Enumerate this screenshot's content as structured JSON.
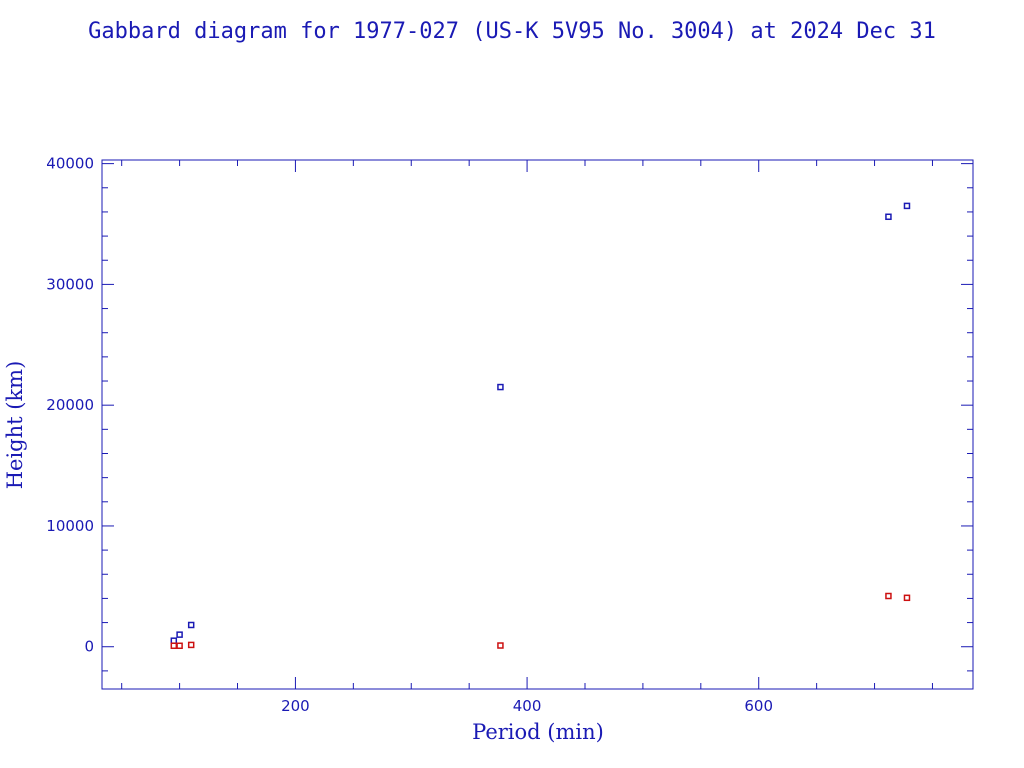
{
  "chart_data": {
    "type": "scatter",
    "title": "Gabbard diagram for 1977-027 (US-K 5V95 No. 3004) at 2024 Dec 31",
    "xlabel": "Period (min)",
    "ylabel": "Height (km)",
    "xlim": [
      33,
      785
    ],
    "ylim": [
      -3500,
      40300
    ],
    "xticks": [
      200,
      400,
      600
    ],
    "yticks": [
      0,
      10000,
      20000,
      30000,
      40000
    ],
    "xtick_labels": [
      "200",
      "400",
      "600"
    ],
    "ytick_labels": [
      "0",
      "10000",
      "20000",
      "30000",
      "40000"
    ],
    "grid": false,
    "colors": {
      "apogee": "#1a1ab4",
      "perigee": "#cc1010",
      "axis": "#1a1ab4"
    },
    "series": [
      {
        "key": "apogee",
        "points": [
          {
            "x": 95,
            "y": 500
          },
          {
            "x": 100,
            "y": 1000
          },
          {
            "x": 110,
            "y": 1800
          },
          {
            "x": 377,
            "y": 21500
          },
          {
            "x": 712,
            "y": 35600
          },
          {
            "x": 728,
            "y": 36500
          }
        ]
      },
      {
        "key": "perigee",
        "points": [
          {
            "x": 95,
            "y": 80
          },
          {
            "x": 100,
            "y": 80
          },
          {
            "x": 110,
            "y": 150
          },
          {
            "x": 377,
            "y": 100
          },
          {
            "x": 712,
            "y": 4200
          },
          {
            "x": 728,
            "y": 4050
          }
        ]
      }
    ]
  }
}
